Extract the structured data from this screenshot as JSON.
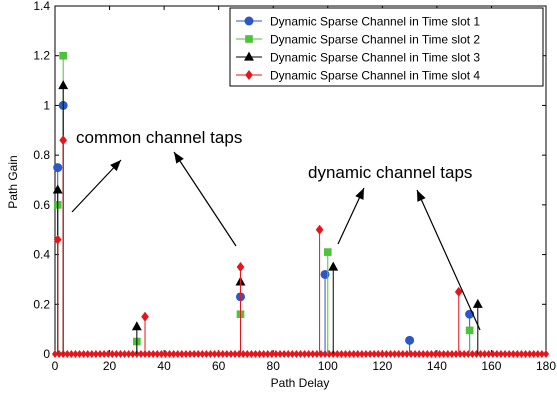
{
  "chart_data": {
    "type": "stem",
    "title": "",
    "xlabel": "Path Delay",
    "ylabel": "Path Gain",
    "xlim": [
      0,
      180
    ],
    "ylim": [
      0,
      1.4
    ],
    "xticks": [
      "0",
      "20",
      "40",
      "60",
      "80",
      "100",
      "120",
      "140",
      "160",
      "180"
    ],
    "yticks": [
      "0",
      "0.2",
      "0.4",
      "0.6",
      "0.8",
      "1",
      "1.2",
      "1.4"
    ],
    "grid": false,
    "legend_position": "top-right",
    "series": [
      {
        "name": "Dynamic Sparse Channel in Time slot 1",
        "color": "#2b57c8",
        "marker": "circle",
        "x": [
          1,
          3,
          68,
          99,
          130,
          152
        ],
        "y": [
          0.75,
          1.0,
          0.23,
          0.32,
          0.055,
          0.16
        ]
      },
      {
        "name": "Dynamic Sparse Channel in Time slot 2",
        "color": "#4ec23a",
        "marker": "square",
        "x": [
          1,
          3,
          30,
          68,
          100,
          152
        ],
        "y": [
          0.6,
          1.2,
          0.05,
          0.16,
          0.41,
          0.095
        ]
      },
      {
        "name": "Dynamic Sparse Channel in Time slot 3",
        "color": "#000000",
        "marker": "triangle",
        "x": [
          1,
          3,
          30,
          68,
          102,
          155
        ],
        "y": [
          0.66,
          1.08,
          0.11,
          0.29,
          0.35,
          0.2
        ]
      },
      {
        "name": "Dynamic Sparse Channel in Time slot 4",
        "color": "#e8141c",
        "marker": "diamond",
        "x": [
          1,
          3,
          33,
          68,
          97,
          148
        ],
        "y": [
          0.46,
          0.86,
          0.15,
          0.35,
          0.5,
          0.25
        ]
      }
    ],
    "zero_marker_series_color": "#e8141c",
    "annotations": [
      {
        "text": "common channel taps",
        "arrows_to": [
          [
            1,
            0.6
          ],
          [
            68,
            0.4
          ]
        ]
      },
      {
        "text": "dynamic channel taps",
        "arrows_to": [
          [
            102,
            0.33
          ],
          [
            154,
            0.23
          ]
        ]
      }
    ]
  }
}
